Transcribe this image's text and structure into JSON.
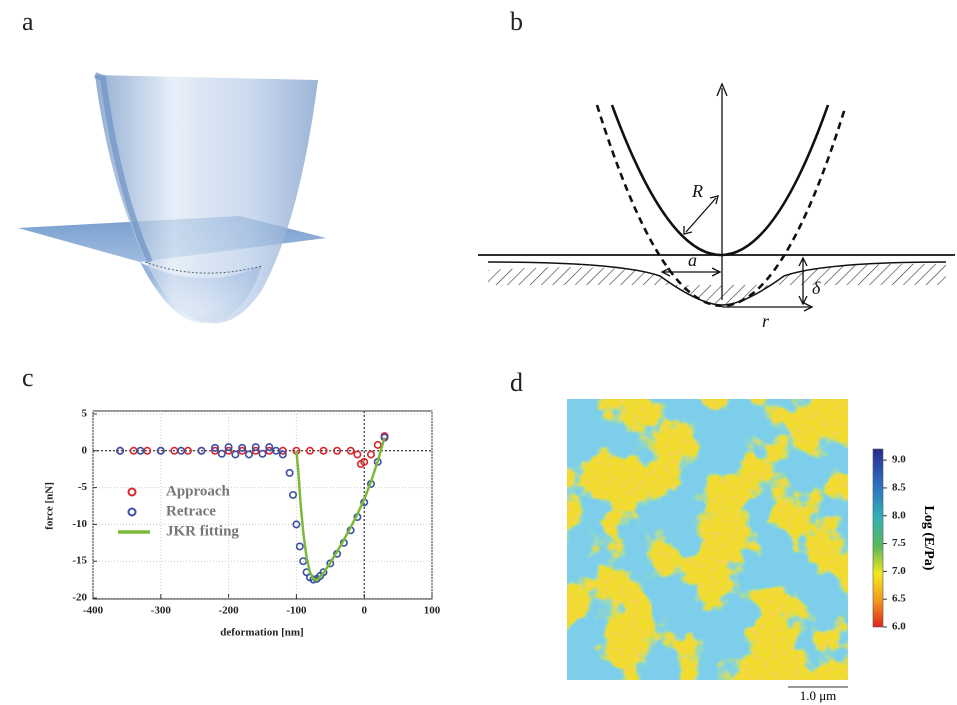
{
  "panel_labels": [
    "a",
    "b",
    "c",
    "d"
  ],
  "diagram": {
    "labels": [
      "R",
      "a",
      "δ",
      "r"
    ]
  },
  "chart_data": {
    "type": "scatter",
    "xlabel": "deformation [nm]",
    "ylabel": "force [nN]",
    "xlim": [
      -400,
      100
    ],
    "ylim": [
      -20,
      5
    ],
    "xticks": [
      -400,
      -300,
      -200,
      -100,
      0,
      100
    ],
    "yticks": [
      5,
      0,
      -5,
      -10,
      -15,
      -20
    ],
    "grid": true,
    "legend": "center left",
    "series": [
      {
        "name": "Approach",
        "color": "#d9262e",
        "type": "markers",
        "x": [
          -360,
          -340,
          -320,
          -300,
          -280,
          -260,
          -240,
          -220,
          -200,
          -180,
          -160,
          -140,
          -120,
          -100,
          -80,
          -60,
          -40,
          -20,
          -10,
          -5,
          0,
          10,
          20,
          30
        ],
        "values": [
          0,
          0,
          0,
          0,
          0,
          0,
          0,
          0,
          0,
          0,
          0,
          0,
          0,
          0,
          0,
          0,
          0,
          0,
          -0.5,
          -1.8,
          -1.5,
          -0.5,
          0.8,
          2
        ]
      },
      {
        "name": "Retrace",
        "color": "#3a4fa6",
        "type": "markers",
        "x": [
          -360,
          -330,
          -300,
          -270,
          -240,
          -220,
          -210,
          -200,
          -190,
          -180,
          -170,
          -160,
          -150,
          -140,
          -130,
          -120,
          -110,
          -105,
          -100,
          -95,
          -90,
          -85,
          -80,
          -75,
          -70,
          -65,
          -60,
          -50,
          -40,
          -30,
          -20,
          -10,
          0,
          10,
          20,
          30
        ],
        "values": [
          0,
          0,
          0,
          0,
          0,
          0.4,
          -0.4,
          0.5,
          -0.5,
          0.4,
          -0.5,
          0.5,
          -0.4,
          0.5,
          0,
          -0.5,
          -3,
          -6,
          -10,
          -13,
          -15,
          -16.5,
          -17.2,
          -17.5,
          -17.4,
          -17,
          -16.5,
          -15.3,
          -14,
          -12.5,
          -10.8,
          -9,
          -7,
          -4.5,
          -1.5,
          1.8
        ]
      },
      {
        "name": "JKR fitting",
        "color": "#7cb83a",
        "type": "line",
        "x": [
          -100,
          -97,
          -94,
          -90,
          -85,
          -80,
          -75,
          -70,
          -60,
          -50,
          -40,
          -30,
          -20,
          -10,
          0,
          10,
          20,
          30
        ],
        "values": [
          0,
          -3,
          -7,
          -11,
          -14.5,
          -16.5,
          -17.4,
          -17.6,
          -16.6,
          -15.2,
          -13.7,
          -12.1,
          -10.4,
          -8.6,
          -6.6,
          -4.2,
          -1.4,
          1.8
        ]
      }
    ]
  },
  "map": {
    "colorbar_label": "Log (E/Pa)",
    "clim": [
      6,
      9.2
    ],
    "ticks": [
      {
        "value": 6,
        "label": "6.0"
      },
      {
        "value": 6.5,
        "label": "6.5"
      },
      {
        "value": 7,
        "label": "7.0"
      },
      {
        "value": 7.5,
        "label": "7.5"
      },
      {
        "value": 8,
        "label": "8.0"
      },
      {
        "value": 8.5,
        "label": "8.5"
      },
      {
        "value": 9,
        "label": "9.0"
      }
    ],
    "scale_bar": "1.0 μm"
  }
}
